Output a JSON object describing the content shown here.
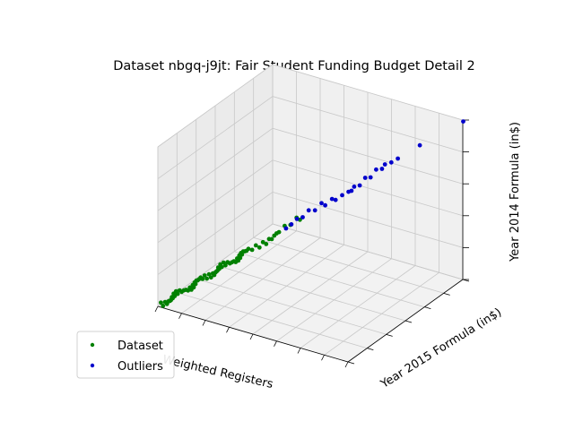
{
  "chart_data": {
    "type": "scatter",
    "title": "Dataset nbgq-j9jt: Fair Student Funding Budget Detail 2",
    "xlabel": "Weighted Registers",
    "ylabel": "Year 2015 Formula (in$)",
    "zlabel": "Year 2014 Formula (in$)",
    "grid": true,
    "legend": "lower-left",
    "projection": "3d",
    "series": [
      {
        "name": "Dataset",
        "color": "#008000",
        "x": [
          0.01,
          0.015,
          0.02,
          0.025,
          0.03,
          0.035,
          0.04,
          0.045,
          0.05,
          0.055,
          0.06,
          0.065,
          0.07,
          0.075,
          0.08,
          0.085,
          0.09,
          0.095,
          0.1,
          0.105,
          0.11,
          0.115,
          0.12,
          0.125,
          0.13,
          0.135,
          0.14,
          0.145,
          0.15,
          0.155,
          0.16,
          0.165,
          0.17,
          0.175,
          0.18,
          0.185,
          0.19,
          0.195,
          0.2,
          0.205,
          0.21,
          0.215,
          0.22,
          0.225,
          0.23,
          0.235,
          0.24,
          0.245,
          0.25,
          0.255,
          0.26,
          0.265,
          0.27,
          0.275,
          0.28,
          0.285,
          0.29,
          0.295,
          0.3,
          0.31,
          0.32,
          0.33,
          0.34,
          0.35,
          0.36,
          0.37,
          0.38,
          0.39,
          0.4,
          0.42,
          0.44,
          0.46,
          0.47
        ],
        "y": [
          0.01,
          0.015,
          0.02,
          0.025,
          0.03,
          0.035,
          0.04,
          0.045,
          0.05,
          0.055,
          0.06,
          0.065,
          0.07,
          0.075,
          0.08,
          0.085,
          0.09,
          0.095,
          0.1,
          0.105,
          0.11,
          0.115,
          0.12,
          0.125,
          0.13,
          0.135,
          0.14,
          0.145,
          0.15,
          0.155,
          0.16,
          0.165,
          0.17,
          0.175,
          0.18,
          0.185,
          0.19,
          0.195,
          0.2,
          0.205,
          0.21,
          0.215,
          0.22,
          0.225,
          0.23,
          0.235,
          0.24,
          0.245,
          0.25,
          0.255,
          0.26,
          0.265,
          0.27,
          0.275,
          0.28,
          0.285,
          0.29,
          0.295,
          0.3,
          0.31,
          0.32,
          0.33,
          0.34,
          0.35,
          0.36,
          0.37,
          0.38,
          0.39,
          0.4,
          0.42,
          0.44,
          0.46,
          0.47
        ],
        "z": [
          0.01,
          0.015,
          0.02,
          0.025,
          0.03,
          0.035,
          0.04,
          0.045,
          0.05,
          0.055,
          0.06,
          0.065,
          0.07,
          0.075,
          0.08,
          0.085,
          0.09,
          0.095,
          0.1,
          0.105,
          0.11,
          0.115,
          0.12,
          0.125,
          0.13,
          0.135,
          0.14,
          0.145,
          0.15,
          0.155,
          0.16,
          0.165,
          0.17,
          0.175,
          0.18,
          0.185,
          0.19,
          0.195,
          0.2,
          0.205,
          0.21,
          0.215,
          0.22,
          0.225,
          0.23,
          0.235,
          0.24,
          0.245,
          0.25,
          0.255,
          0.26,
          0.265,
          0.27,
          0.275,
          0.28,
          0.285,
          0.29,
          0.295,
          0.3,
          0.31,
          0.32,
          0.33,
          0.34,
          0.35,
          0.36,
          0.37,
          0.38,
          0.39,
          0.4,
          0.42,
          0.44,
          0.46,
          0.47
        ]
      },
      {
        "name": "Outliers",
        "color": "#0000cc",
        "x": [
          0.42,
          0.44,
          0.46,
          0.48,
          0.5,
          0.52,
          0.54,
          0.55,
          0.57,
          0.58,
          0.6,
          0.62,
          0.63,
          0.64,
          0.66,
          0.68,
          0.7,
          0.72,
          0.74,
          0.75,
          0.77,
          0.79,
          0.86,
          1.0
        ],
        "y": [
          0.42,
          0.44,
          0.46,
          0.48,
          0.5,
          0.52,
          0.54,
          0.55,
          0.57,
          0.58,
          0.6,
          0.62,
          0.63,
          0.64,
          0.66,
          0.68,
          0.7,
          0.72,
          0.74,
          0.75,
          0.77,
          0.79,
          0.86,
          1.0
        ],
        "z": [
          0.42,
          0.44,
          0.46,
          0.48,
          0.5,
          0.52,
          0.54,
          0.55,
          0.57,
          0.58,
          0.6,
          0.62,
          0.63,
          0.64,
          0.66,
          0.68,
          0.7,
          0.72,
          0.74,
          0.75,
          0.77,
          0.79,
          0.86,
          1.0
        ]
      }
    ]
  }
}
